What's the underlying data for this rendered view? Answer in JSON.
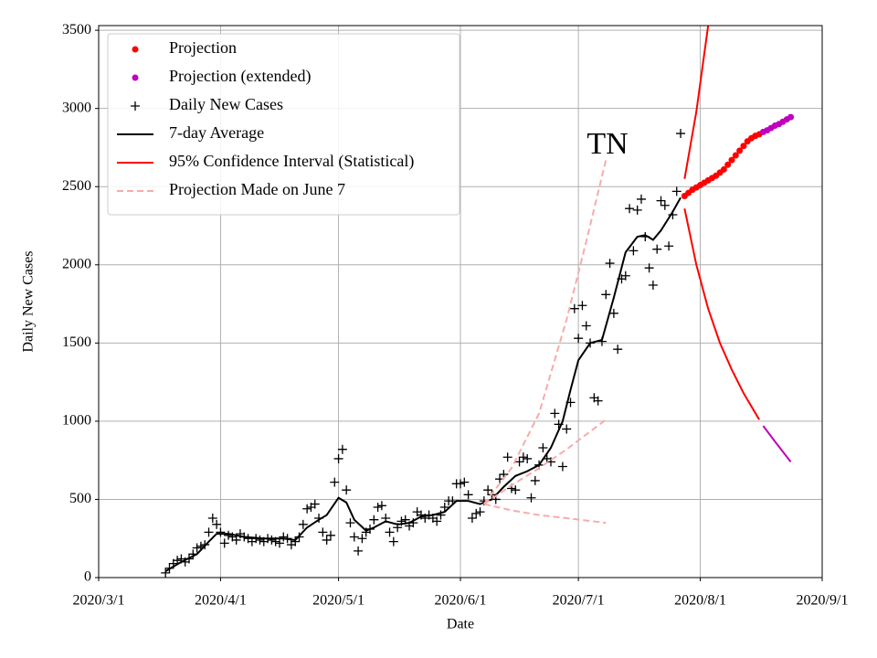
{
  "chart_data": {
    "type": "line",
    "annotation": "TN",
    "xlabel": "Date",
    "ylabel": "Daily New Cases",
    "xlim": [
      "2020/3/1",
      "2020/9/1"
    ],
    "xticks": [
      "2020/3/1",
      "2020/4/1",
      "2020/5/1",
      "2020/6/1",
      "2020/7/1",
      "2020/8/1",
      "2020/9/1"
    ],
    "ylim": [
      0,
      3530
    ],
    "yticks": [
      0,
      500,
      1000,
      1500,
      2000,
      2500,
      3000,
      3500
    ],
    "grid": true,
    "legend": "upper left",
    "series": [
      {
        "name": "Projection",
        "style": "dots",
        "color": "#ff0000",
        "x": [
          "2020/7/28",
          "2020/7/29",
          "2020/7/30",
          "2020/7/31",
          "2020/8/1",
          "2020/8/2",
          "2020/8/3",
          "2020/8/4",
          "2020/8/5",
          "2020/8/6",
          "2020/8/7",
          "2020/8/8",
          "2020/8/9",
          "2020/8/10",
          "2020/8/11",
          "2020/8/12",
          "2020/8/13",
          "2020/8/14",
          "2020/8/15",
          "2020/8/16"
        ],
        "values": [
          2440,
          2460,
          2480,
          2495,
          2510,
          2525,
          2540,
          2555,
          2570,
          2590,
          2610,
          2640,
          2670,
          2700,
          2730,
          2760,
          2790,
          2810,
          2825,
          2835
        ]
      },
      {
        "name": "Projection (extended)",
        "style": "dots",
        "color": "#bf00bf",
        "x": [
          "2020/8/17",
          "2020/8/18",
          "2020/8/19",
          "2020/8/20",
          "2020/8/21",
          "2020/8/22",
          "2020/8/23",
          "2020/8/24"
        ],
        "values": [
          2850,
          2860,
          2875,
          2890,
          2900,
          2915,
          2930,
          2945
        ]
      },
      {
        "name": "Daily New Cases",
        "style": "plus",
        "color": "#000000",
        "x": [
          "2020/3/18",
          "2020/3/19",
          "2020/3/20",
          "2020/3/21",
          "2020/3/22",
          "2020/3/23",
          "2020/3/24",
          "2020/3/25",
          "2020/3/26",
          "2020/3/27",
          "2020/3/28",
          "2020/3/29",
          "2020/3/30",
          "2020/3/31",
          "2020/4/1",
          "2020/4/2",
          "2020/4/3",
          "2020/4/4",
          "2020/4/5",
          "2020/4/6",
          "2020/4/7",
          "2020/4/8",
          "2020/4/9",
          "2020/4/10",
          "2020/4/11",
          "2020/4/12",
          "2020/4/13",
          "2020/4/14",
          "2020/4/15",
          "2020/4/16",
          "2020/4/17",
          "2020/4/18",
          "2020/4/19",
          "2020/4/20",
          "2020/4/21",
          "2020/4/22",
          "2020/4/23",
          "2020/4/24",
          "2020/4/25",
          "2020/4/26",
          "2020/4/27",
          "2020/4/28",
          "2020/4/29",
          "2020/4/30",
          "2020/5/1",
          "2020/5/2",
          "2020/5/3",
          "2020/5/4",
          "2020/5/5",
          "2020/5/6",
          "2020/5/7",
          "2020/5/8",
          "2020/5/9",
          "2020/5/10",
          "2020/5/11",
          "2020/5/12",
          "2020/5/13",
          "2020/5/14",
          "2020/5/15",
          "2020/5/16",
          "2020/5/17",
          "2020/5/18",
          "2020/5/19",
          "2020/5/20",
          "2020/5/21",
          "2020/5/22",
          "2020/5/23",
          "2020/5/24",
          "2020/5/25",
          "2020/5/26",
          "2020/5/27",
          "2020/5/28",
          "2020/5/29",
          "2020/5/30",
          "2020/5/31",
          "2020/6/1",
          "2020/6/2",
          "2020/6/3",
          "2020/6/4",
          "2020/6/5",
          "2020/6/6",
          "2020/6/7",
          "2020/6/8",
          "2020/6/9",
          "2020/6/10",
          "2020/6/11",
          "2020/6/12",
          "2020/6/13",
          "2020/6/14",
          "2020/6/15",
          "2020/6/16",
          "2020/6/17",
          "2020/6/18",
          "2020/6/19",
          "2020/6/20",
          "2020/6/21",
          "2020/6/22",
          "2020/6/23",
          "2020/6/24",
          "2020/6/25",
          "2020/6/26",
          "2020/6/27",
          "2020/6/28",
          "2020/6/29",
          "2020/6/30",
          "2020/7/1",
          "2020/7/2",
          "2020/7/3",
          "2020/7/4",
          "2020/7/5",
          "2020/7/6",
          "2020/7/7",
          "2020/7/8",
          "2020/7/9",
          "2020/7/10",
          "2020/7/11",
          "2020/7/12",
          "2020/7/13",
          "2020/7/14",
          "2020/7/15",
          "2020/7/16",
          "2020/7/17",
          "2020/7/18",
          "2020/7/19",
          "2020/7/20",
          "2020/7/21",
          "2020/7/22",
          "2020/7/23",
          "2020/7/24",
          "2020/7/25",
          "2020/7/26",
          "2020/7/27"
        ],
        "values": [
          30,
          60,
          90,
          110,
          120,
          100,
          120,
          150,
          190,
          200,
          210,
          290,
          380,
          340,
          290,
          220,
          270,
          260,
          240,
          280,
          260,
          250,
          230,
          250,
          240,
          230,
          250,
          240,
          230,
          220,
          260,
          250,
          210,
          230,
          260,
          340,
          440,
          450,
          470,
          380,
          290,
          240,
          270,
          610,
          760,
          820,
          560,
          350,
          260,
          170,
          250,
          290,
          310,
          370,
          450,
          460,
          380,
          290,
          230,
          320,
          360,
          370,
          330,
          350,
          420,
          400,
          380,
          400,
          380,
          360,
          400,
          450,
          490,
          490,
          600,
          600,
          610,
          530,
          380,
          410,
          420,
          490,
          560,
          530,
          500,
          630,
          660,
          770,
          570,
          560,
          740,
          770,
          760,
          510,
          620,
          720,
          830,
          760,
          740,
          1050,
          980,
          710,
          950,
          1120,
          1720,
          1530,
          1740,
          1610,
          1500,
          1150,
          1130,
          1510,
          1810,
          2010,
          1690,
          1460,
          1910,
          1930,
          2360,
          2090,
          2350,
          2420,
          2180,
          1980,
          1870,
          2100,
          2410,
          2380,
          2120,
          2320,
          2470,
          2840
        ]
      },
      {
        "name": "7-day Average",
        "style": "line",
        "color": "#000000",
        "x": [
          "2020/3/18",
          "2020/3/22",
          "2020/3/26",
          "2020/3/29",
          "2020/3/31",
          "2020/4/3",
          "2020/4/7",
          "2020/4/12",
          "2020/4/17",
          "2020/4/20",
          "2020/4/23",
          "2020/4/26",
          "2020/4/28",
          "2020/5/1",
          "2020/5/3",
          "2020/5/5",
          "2020/5/8",
          "2020/5/10",
          "2020/5/13",
          "2020/5/16",
          "2020/5/19",
          "2020/5/22",
          "2020/5/25",
          "2020/5/28",
          "2020/5/31",
          "2020/6/3",
          "2020/6/6",
          "2020/6/9",
          "2020/6/12",
          "2020/6/15",
          "2020/6/18",
          "2020/6/21",
          "2020/6/24",
          "2020/6/27",
          "2020/6/29",
          "2020/7/1",
          "2020/7/4",
          "2020/7/7",
          "2020/7/10",
          "2020/7/13",
          "2020/7/16",
          "2020/7/18",
          "2020/7/20",
          "2020/7/22",
          "2020/7/25",
          "2020/7/27"
        ],
        "values": [
          40,
          100,
          150,
          230,
          280,
          280,
          260,
          250,
          250,
          240,
          320,
          370,
          400,
          510,
          480,
          370,
          300,
          320,
          360,
          340,
          350,
          390,
          400,
          420,
          490,
          490,
          470,
          500,
          580,
          650,
          680,
          720,
          830,
          1000,
          1200,
          1390,
          1500,
          1520,
          1790,
          2080,
          2180,
          2190,
          2160,
          2220,
          2340,
          2430
        ]
      },
      {
        "name": "95% Confidence Interval (Statistical)",
        "style": "line",
        "color": "#ff0000",
        "x": [
          "2020/7/28",
          "2020/7/31",
          "2020/8/3"
        ],
        "values": [
          2550,
          2980,
          3530
        ]
      },
      {
        "name": "Projection Made on June 7",
        "style": "dashed",
        "color": "#f7abab",
        "x": [
          "2020/6/7",
          "2020/6/14",
          "2020/6/21",
          "2020/6/28",
          "2020/7/3",
          "2020/7/8"
        ],
        "values": [
          470,
          700,
          1050,
          1650,
          2150,
          2670
        ]
      },
      {
        "style": "line",
        "color": "#ff0000",
        "x": [
          "2020/7/28",
          "2020/7/31",
          "2020/8/3",
          "2020/8/6",
          "2020/8/9",
          "2020/8/12",
          "2020/8/16"
        ],
        "values": [
          2360,
          2000,
          1720,
          1500,
          1330,
          1180,
          1010
        ]
      },
      {
        "style": "line",
        "color": "#bf00bf",
        "x": [
          "2020/8/17",
          "2020/8/20",
          "2020/8/24"
        ],
        "values": [
          970,
          870,
          740
        ]
      },
      {
        "style": "dashed",
        "color": "#f7abab",
        "x": [
          "2020/6/7",
          "2020/6/14",
          "2020/6/21",
          "2020/6/28",
          "2020/7/8"
        ],
        "values": [
          470,
          590,
          700,
          820,
          1010
        ]
      },
      {
        "style": "dashed",
        "color": "#f7abab",
        "x": [
          "2020/6/7",
          "2020/6/14",
          "2020/6/21",
          "2020/6/28",
          "2020/7/8"
        ],
        "values": [
          470,
          430,
          400,
          380,
          350
        ]
      }
    ]
  }
}
